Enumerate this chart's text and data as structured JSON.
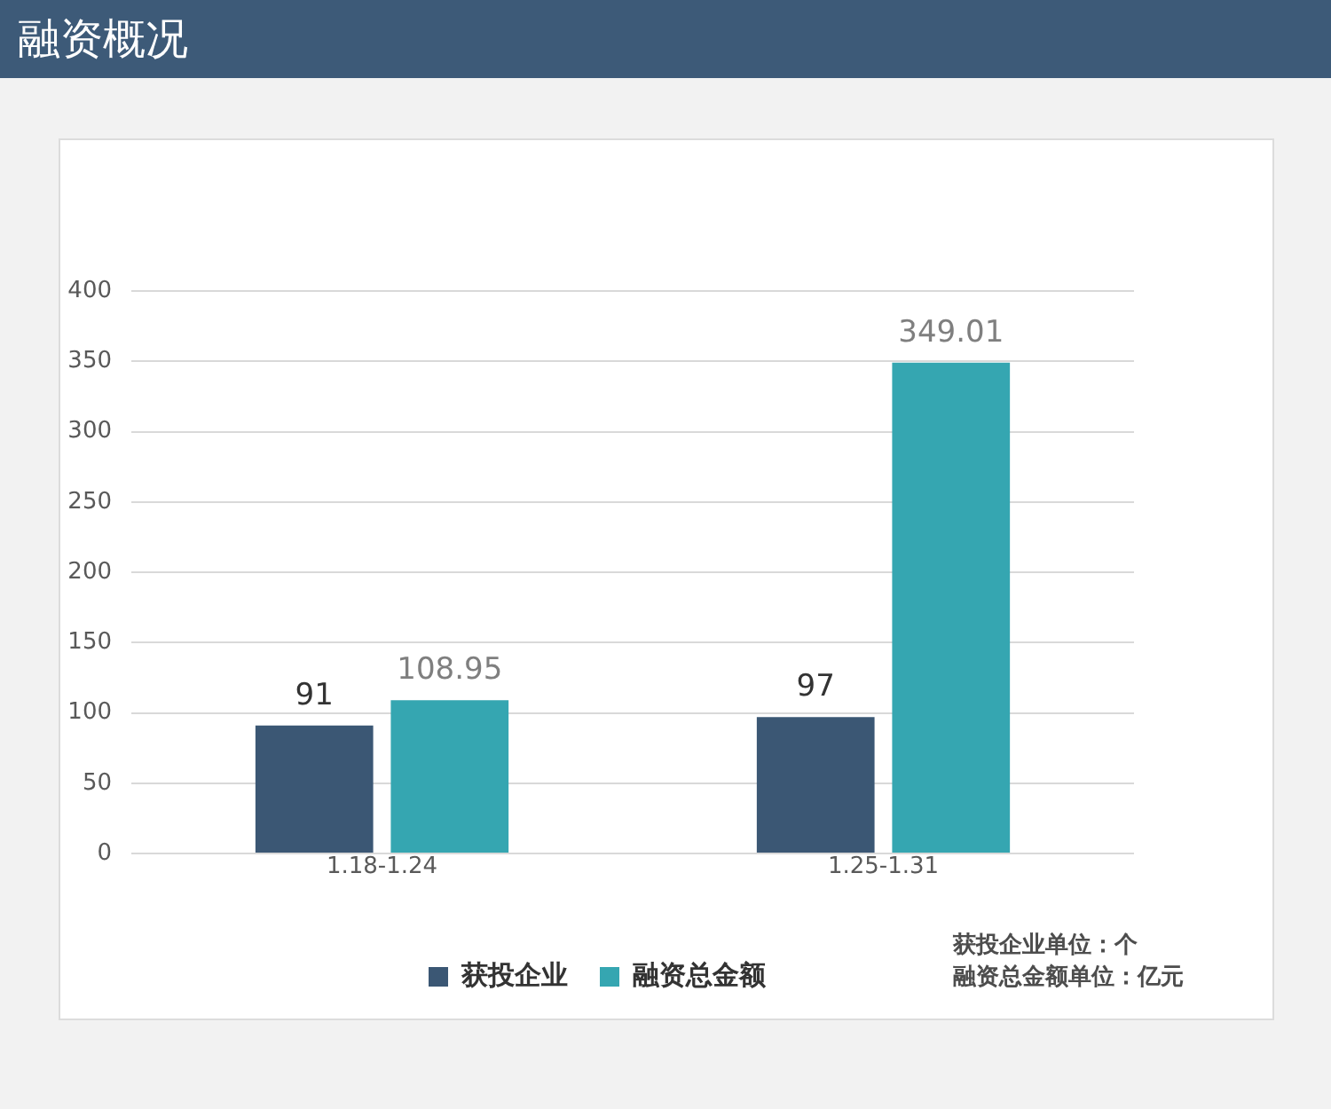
{
  "chart_data": {
    "type": "bar",
    "title": "融资概况",
    "categories": [
      "1.18-1.24",
      "1.25-1.31"
    ],
    "series": [
      {
        "name": "获投企业",
        "color": "#3b5774",
        "values": [
          91,
          97
        ]
      },
      {
        "name": "融资总金额",
        "color": "#35a6b1",
        "values": [
          108.95,
          349.01
        ]
      }
    ],
    "ylim": [
      0,
      400
    ],
    "yticks": [
      0,
      50,
      100,
      150,
      200,
      250,
      300,
      350,
      400
    ],
    "grid": "y",
    "legend": "bottom",
    "data_labels": true,
    "annotations": [
      "获投企业单位：个",
      "融资总金额单位：亿元"
    ]
  }
}
